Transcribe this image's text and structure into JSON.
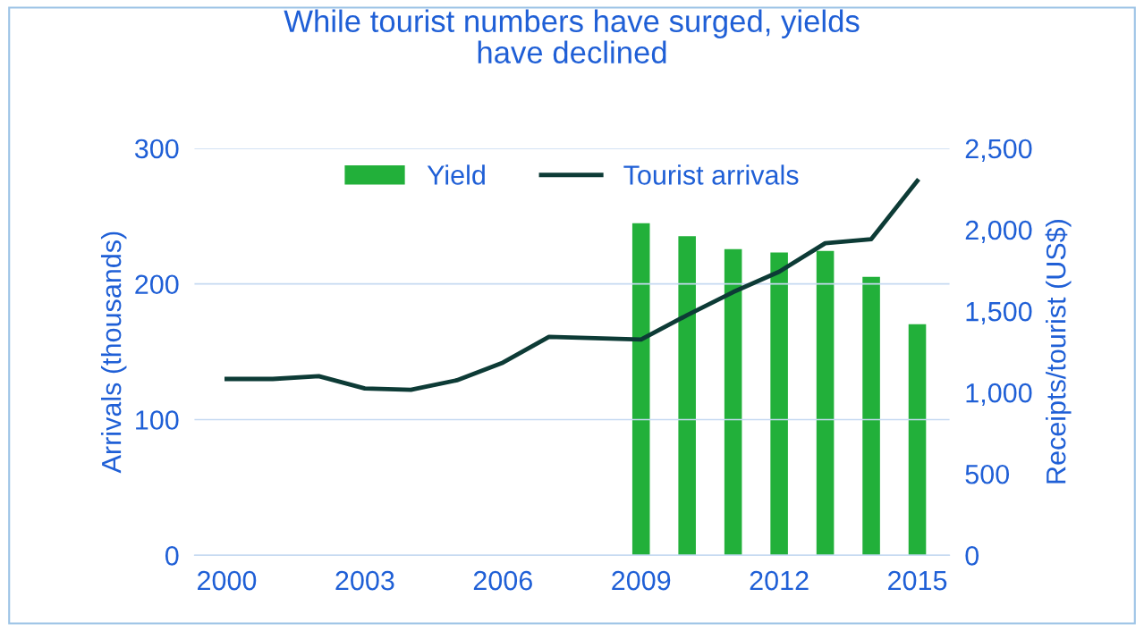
{
  "chart_data": {
    "type": "line",
    "title": "While tourist numbers have surged, yields\nhave declined",
    "ylabel": "Arrivals (thousands)",
    "y2label": "Receipts/tourist (US$)",
    "x": [
      2000,
      2001,
      2002,
      2003,
      2004,
      2005,
      2006,
      2007,
      2008,
      2009,
      2010,
      2011,
      2012,
      2013,
      2014,
      2015
    ],
    "series": [
      {
        "name": "Yield",
        "type": "bar",
        "axis": "y2",
        "color": "#22b03a",
        "values": [
          null,
          null,
          null,
          null,
          null,
          null,
          null,
          null,
          null,
          2040,
          1960,
          1880,
          1860,
          1870,
          1710,
          1420
        ]
      },
      {
        "name": "Tourist arrivals",
        "axis": "y",
        "color": "#0d3b36",
        "values": [
          130,
          130,
          132,
          123,
          122,
          129,
          142,
          161,
          160,
          159,
          177,
          194,
          209,
          230,
          233,
          276
        ]
      }
    ],
    "xlim": [
      1999.3,
      2015.7
    ],
    "xticks": [
      2000,
      2003,
      2006,
      2009,
      2012,
      2015
    ],
    "ylim": [
      0,
      300
    ],
    "yticks": [
      0,
      100,
      200,
      300
    ],
    "y2lim": [
      0,
      2500
    ],
    "y2ticks": [
      0,
      {
        "value": 500,
        "label": "500"
      },
      {
        "value": 1000,
        "label": "1,000"
      },
      {
        "value": 1500,
        "label": "1,500"
      },
      {
        "value": 2000,
        "label": "2,000"
      },
      {
        "value": 2500,
        "label": "2,500"
      }
    ],
    "grid": "y",
    "legend": "top",
    "marker": "none",
    "line_style": "solid"
  }
}
